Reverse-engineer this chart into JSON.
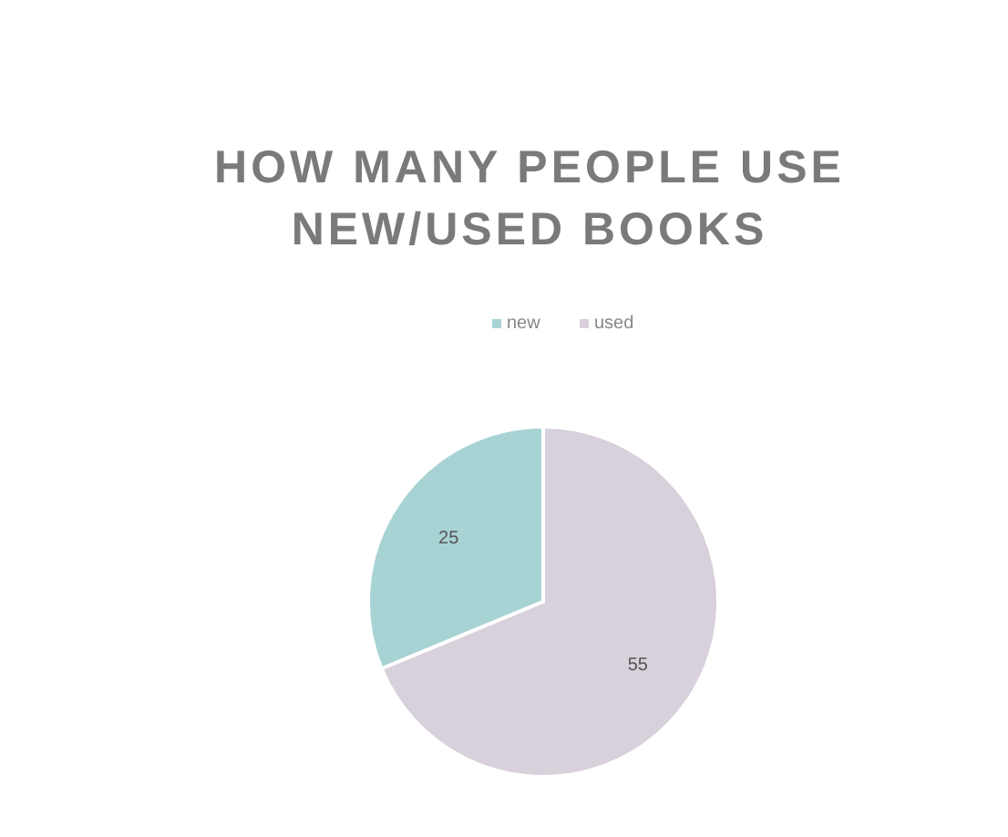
{
  "chart_data": {
    "type": "pie",
    "title": "HOW MANY PEOPLE USE NEW/USED BOOKS",
    "categories": [
      "new",
      "used"
    ],
    "values": [
      25,
      55
    ],
    "colors": [
      "#a8d3d5",
      "#d8d0da"
    ],
    "data_labels": true,
    "legend": "top"
  }
}
